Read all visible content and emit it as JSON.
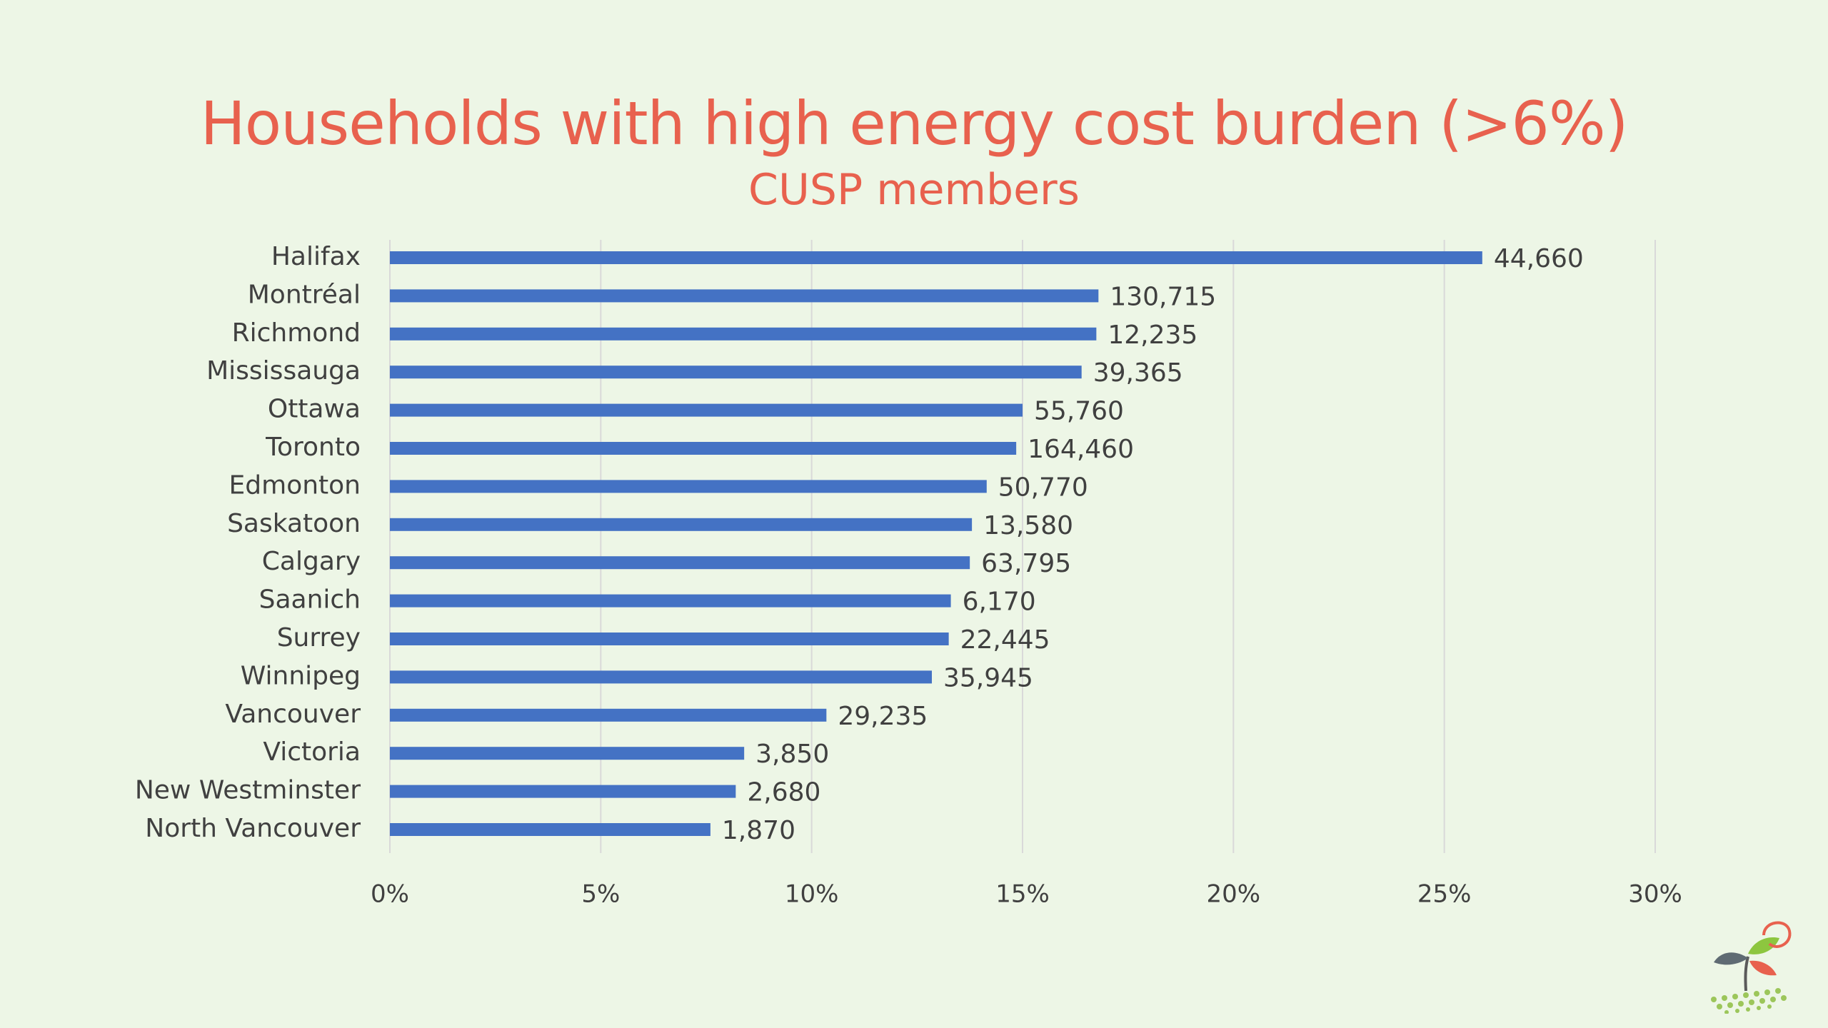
{
  "chart_data": {
    "type": "bar",
    "orientation": "horizontal",
    "title": "Households with high energy cost burden (>6%)",
    "subtitle": "CUSP members",
    "categories": [
      "Halifax",
      "Montréal",
      "Richmond",
      "Mississauga",
      "Ottawa",
      "Toronto",
      "Edmonton",
      "Saskatoon",
      "Calgary",
      "Saanich",
      "Surrey",
      "Winnipeg",
      "Vancouver",
      "Victoria",
      "New Westminster",
      "North Vancouver"
    ],
    "values": [
      25.9,
      16.8,
      16.75,
      16.4,
      15.0,
      14.85,
      14.15,
      13.8,
      13.75,
      13.3,
      13.25,
      12.85,
      10.35,
      8.4,
      8.2,
      7.6
    ],
    "data_labels": [
      "44,660",
      "130,715",
      "12,235",
      "39,365",
      "55,760",
      "164,460",
      "50,770",
      "13,580",
      "63,795",
      "6,170",
      "22,445",
      "35,945",
      "29,235",
      "3,850",
      "2,680",
      "1,870"
    ],
    "x_ticks": [
      "0%",
      "5%",
      "10%",
      "15%",
      "20%",
      "25%",
      "30%"
    ],
    "xlim": [
      0,
      30
    ],
    "xlabel": "",
    "ylabel": "",
    "grid": "vertical",
    "legend": "none",
    "colors": {
      "bar": "#4472c4",
      "title": "#e8614e",
      "background": "#edf6e6",
      "gridline": "#d9d9d9",
      "text": "#404040"
    }
  },
  "logo": {
    "icon": "cusp-sprout-logo-icon"
  }
}
